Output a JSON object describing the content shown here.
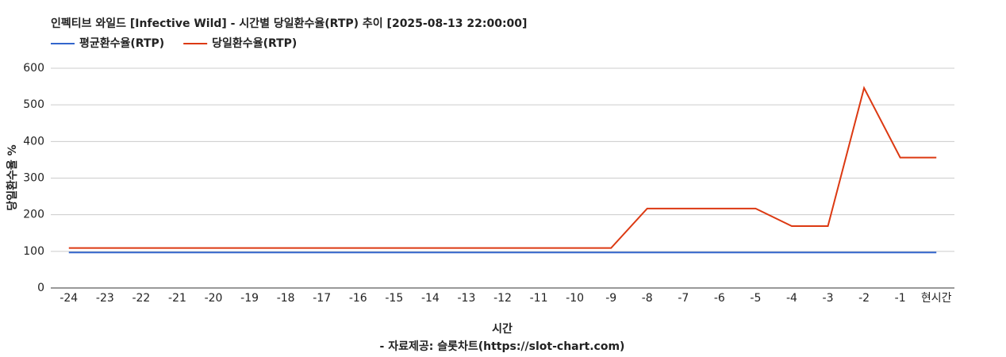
{
  "chart_data": {
    "type": "line",
    "title": "인펙티브 와일드 [Infective Wild] - 시간별 당일환수율(RTP) 추이 [2025-08-13 22:00:00]",
    "x_label": "시간",
    "y_label": "당일환수율 %",
    "source": "- 자료제공: 슬롯차트(https://slot-chart.com)",
    "categories": [
      "-24",
      "-23",
      "-22",
      "-21",
      "-20",
      "-19",
      "-18",
      "-17",
      "-16",
      "-15",
      "-14",
      "-13",
      "-12",
      "-11",
      "-10",
      "-9",
      "-8",
      "-7",
      "-6",
      "-5",
      "-4",
      "-3",
      "-2",
      "-1",
      "현시간"
    ],
    "series": [
      {
        "name": "평균환수율(RTP)",
        "color": "#3366cc",
        "values": [
          97,
          97,
          97,
          97,
          97,
          97,
          97,
          97,
          97,
          97,
          97,
          97,
          97,
          97,
          97,
          97,
          97,
          97,
          97,
          97,
          97,
          97,
          97,
          97,
          97
        ]
      },
      {
        "name": "당일환수율(RTP)",
        "color": "#dc3912",
        "values": [
          109,
          109,
          109,
          109,
          109,
          109,
          109,
          109,
          109,
          109,
          109,
          109,
          109,
          109,
          109,
          109,
          217,
          217,
          217,
          217,
          169,
          169,
          546,
          356,
          356
        ]
      }
    ],
    "ylim": [
      0,
      600
    ],
    "yticks": [
      0,
      100,
      200,
      300,
      400,
      500,
      600
    ],
    "grid": true
  }
}
